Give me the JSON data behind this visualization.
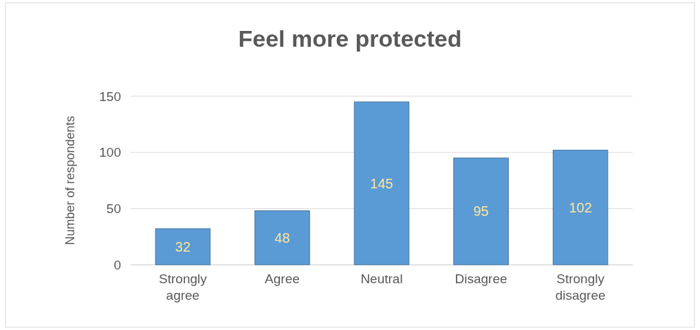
{
  "chart_data": {
    "type": "bar",
    "title": "Feel more protected",
    "ylabel": "Number of respondents",
    "categories": [
      "Strongly agree",
      "Agree",
      "Neutral",
      "Disagree",
      "Strongly disagree"
    ],
    "values": [
      32,
      48,
      145,
      95,
      102
    ],
    "color": "#5b9bd5",
    "ylim": [
      0,
      150
    ],
    "yticks": [
      0,
      50,
      100,
      150
    ],
    "grid": true,
    "data_labels": true
  }
}
